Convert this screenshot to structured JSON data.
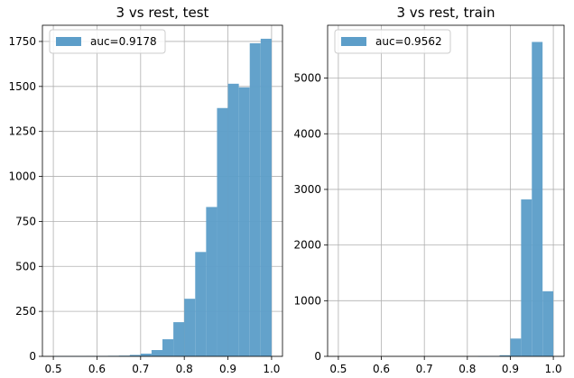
{
  "chart_data": [
    {
      "type": "bar",
      "title": "3 vs rest, test",
      "legend": {
        "label": "auc=0.9178",
        "placement": "upper-left"
      },
      "xlim": [
        0.475,
        1.025
      ],
      "ylim": [
        0,
        1840
      ],
      "xticks": [
        0.5,
        0.6,
        0.7,
        0.8,
        0.9,
        1.0
      ],
      "xtick_labels": [
        "0.5",
        "0.6",
        "0.7",
        "0.8",
        "0.9",
        "1.0"
      ],
      "yticks": [
        0,
        250,
        500,
        750,
        1000,
        1250,
        1500,
        1750
      ],
      "ytick_labels": [
        "0",
        "250",
        "500",
        "750",
        "1000",
        "1250",
        "1500",
        "1750"
      ],
      "grid": true,
      "bin_edges": [
        0.5,
        0.525,
        0.55,
        0.575,
        0.6,
        0.625,
        0.65,
        0.675,
        0.7,
        0.725,
        0.75,
        0.775,
        0.8,
        0.825,
        0.85,
        0.875,
        0.9,
        0.925,
        0.95,
        0.975,
        1.0
      ],
      "values": [
        1,
        1,
        1,
        2,
        2,
        3,
        4,
        8,
        15,
        35,
        95,
        190,
        320,
        580,
        830,
        1380,
        1515,
        1495,
        1740,
        1765
      ],
      "color": "#5d9ec9"
    },
    {
      "type": "bar",
      "title": "3 vs rest, train",
      "legend": {
        "label": "auc=0.9562",
        "placement": "upper-left"
      },
      "xlim": [
        0.475,
        1.025
      ],
      "ylim": [
        0,
        5950
      ],
      "xticks": [
        0.5,
        0.6,
        0.7,
        0.8,
        0.9,
        1.0
      ],
      "xtick_labels": [
        "0.5",
        "0.6",
        "0.7",
        "0.8",
        "0.9",
        "1.0"
      ],
      "yticks": [
        0,
        1000,
        2000,
        3000,
        4000,
        5000
      ],
      "ytick_labels": [
        "0",
        "1000",
        "2000",
        "3000",
        "4000",
        "5000"
      ],
      "grid": true,
      "bin_edges": [
        0.5,
        0.525,
        0.55,
        0.575,
        0.6,
        0.625,
        0.65,
        0.675,
        0.7,
        0.725,
        0.75,
        0.775,
        0.8,
        0.825,
        0.85,
        0.875,
        0.9,
        0.925,
        0.95,
        0.975,
        1.0
      ],
      "values": [
        0,
        0,
        0,
        0,
        0,
        0,
        0,
        0,
        0,
        0,
        0,
        0,
        0,
        2,
        5,
        20,
        320,
        2820,
        5650,
        1170
      ],
      "color": "#5d9ec9"
    }
  ]
}
